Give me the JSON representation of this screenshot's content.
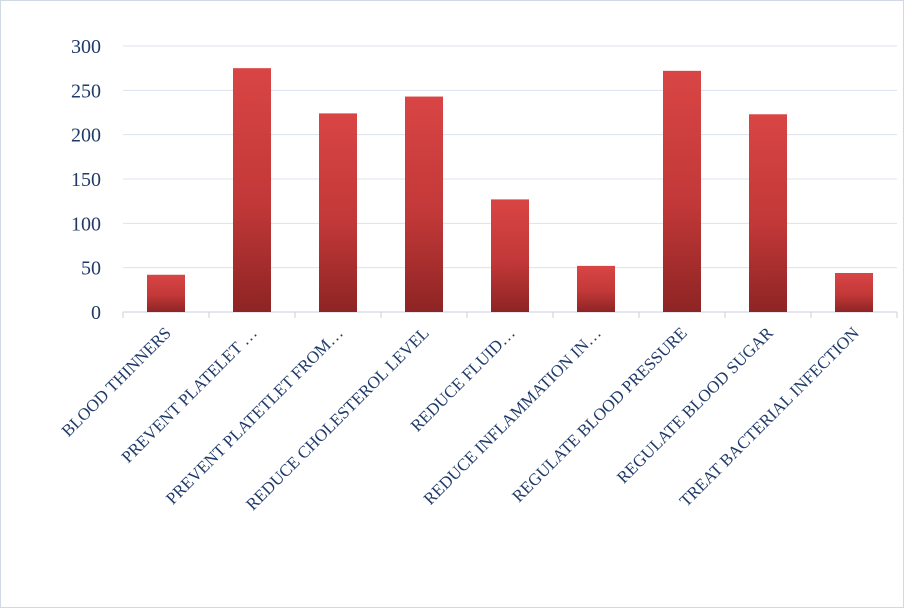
{
  "chart_data": {
    "type": "bar",
    "categories": [
      "BLOOD THINNERS",
      "PREVENT PLATELET …",
      "PREVENT PLATETLET FROM…",
      "REDUCE CHOLESTEROL LEVEL",
      "REDUCE FLUID…",
      "REDUCE INFLAMMATION IN…",
      "REGULATE BLOOD PRESSURE",
      "REGULATE BLOOD SUGAR",
      "TREAT BACTERIAL INFECTION"
    ],
    "values": [
      42,
      275,
      224,
      243,
      127,
      52,
      272,
      223,
      44
    ],
    "ylim": [
      0,
      300
    ],
    "yticks": [
      0,
      50,
      100,
      150,
      200,
      250,
      300
    ],
    "grid": true,
    "legend": "none",
    "colors": {
      "bar_light": "#d94545",
      "bar_dark": "#8e2424",
      "grid": "#dce3ee",
      "text": "#1f3a68"
    }
  }
}
